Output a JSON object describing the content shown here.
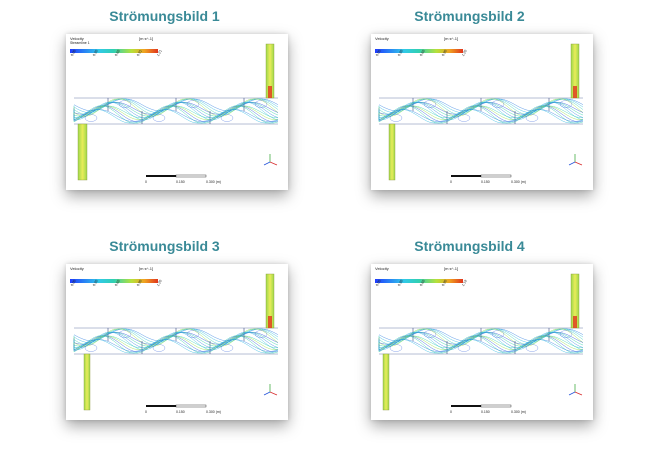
{
  "panels": [
    {
      "title": "Strömungsbild 1",
      "legend": {
        "title": "Velocity",
        "subtitle": "Streamline 1",
        "unit": "[m s^-1]",
        "ticks": [
          "0.00",
          "0.30",
          "0.60",
          "0.91",
          "1.21"
        ]
      },
      "scale": [
        "0",
        "0.150",
        "0.300 (m)"
      ]
    },
    {
      "title": "Strömungsbild 2",
      "legend": {
        "title": "Velocity",
        "subtitle": "",
        "unit": "[m s^-1]",
        "ticks": [
          "0.00",
          "0.30",
          "0.60",
          "0.90",
          "1.20"
        ]
      },
      "scale": [
        "0",
        "0.150",
        "0.300 (m)"
      ]
    },
    {
      "title": "Strömungsbild 3",
      "legend": {
        "title": "Velocity",
        "subtitle": "",
        "unit": "[m s^-1]",
        "ticks": [
          "0.00",
          "0.30",
          "0.60",
          "0.90",
          "1.20"
        ]
      },
      "scale": [
        "0",
        "0.150",
        "0.300 (m)"
      ]
    },
    {
      "title": "Strömungsbild 4",
      "legend": {
        "title": "Velocity",
        "subtitle": "",
        "unit": "[m s^-1]",
        "ticks": [
          "0.00",
          "0.30",
          "0.60",
          "0.90",
          "1.19"
        ]
      },
      "scale": [
        "0",
        "0.150",
        "0.300 (m)"
      ]
    }
  ],
  "colors": {
    "title": "#3a8a97",
    "low": "#1f3cff",
    "mid": "#31d0b0",
    "high": "#e0341c",
    "inlet": "#c8d84a",
    "streamline": "#2a7de0"
  },
  "icons": [
    "axis-triad-icon"
  ]
}
